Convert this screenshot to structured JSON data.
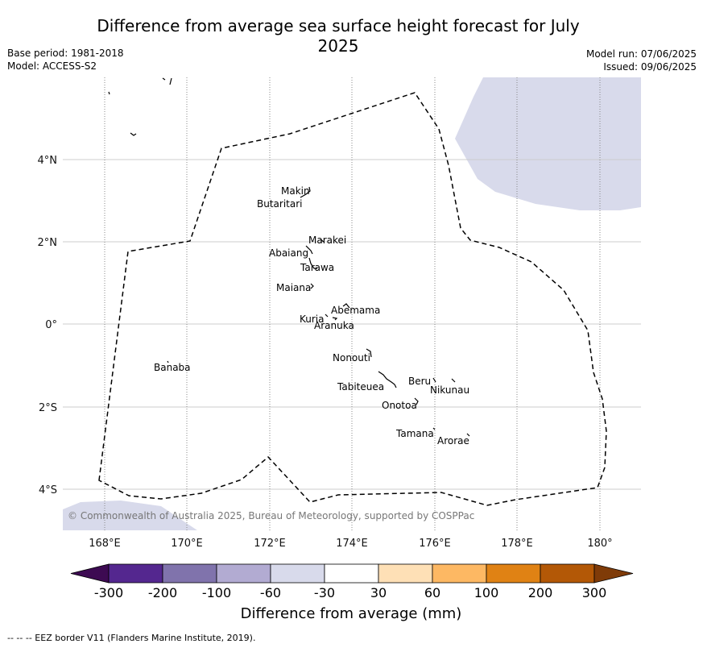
{
  "title": "Difference from average sea surface height forecast for July 2025",
  "meta_left": {
    "base_period": "Base period: 1981-2018",
    "model": "Model: ACCESS-S2"
  },
  "meta_right": {
    "model_run": "Model run: 07/06/2025",
    "issued": "Issued: 09/06/2025"
  },
  "map": {
    "lon_ticks": [
      "168°E",
      "170°E",
      "172°E",
      "174°E",
      "176°E",
      "178°E",
      "180°"
    ],
    "lat_ticks": [
      "4°N",
      "2°N",
      "0°",
      "2°S",
      "4°S"
    ],
    "copyright": "© Commonwealth of Australia 2025, Bureau of Meteorology, supported by COSPPac",
    "islands": [
      "Makin",
      "Butaritari",
      "Marakei",
      "Abaiang",
      "Tarawa",
      "Maiana",
      "Abemama",
      "Kuria",
      "Aranuka",
      "Nonouti",
      "Banaba",
      "Beru",
      "Nikunau",
      "Tabiteuea",
      "Onotoa",
      "Tamana",
      "Arorae"
    ]
  },
  "colorbar": {
    "title": "Difference from average (mm)",
    "ticks": [
      "-300",
      "-200",
      "-100",
      "-60",
      "-30",
      "30",
      "60",
      "100",
      "200",
      "300"
    ],
    "colors": [
      "#3d0a52",
      "#54278f",
      "#8073ac",
      "#b2abd2",
      "#d8daeb",
      "#ffffff",
      "#fee0b6",
      "#fdb863",
      "#e08214",
      "#b35806",
      "#7f3b08"
    ]
  },
  "footer": "--  --  -- EEZ border V11 (Flanders Marine Institute, 2019)."
}
